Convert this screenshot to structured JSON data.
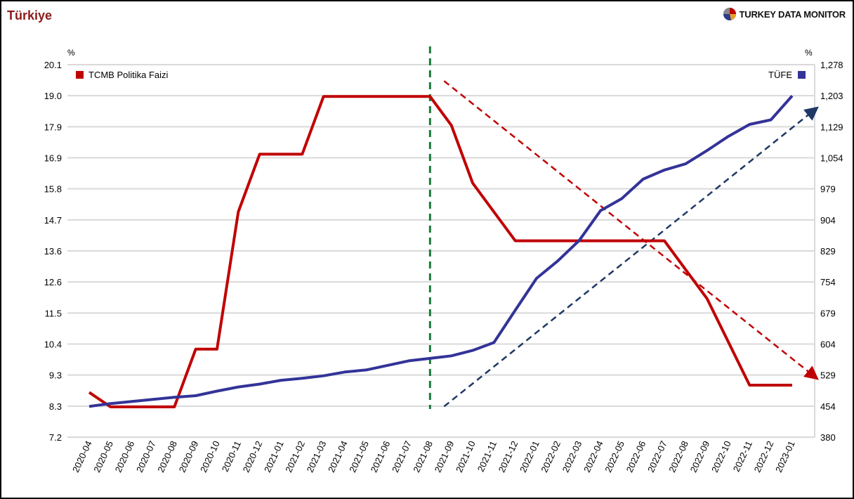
{
  "header": {
    "country": "Türkiye",
    "brand": "TURKEY DATA MONITOR",
    "brand_icon": "pie-logo-icon"
  },
  "chart_data": {
    "type": "line",
    "title": "",
    "categories": [
      "2020-04",
      "2020-05",
      "2020-06",
      "2020-07",
      "2020-08",
      "2020-09",
      "2020-10",
      "2020-11",
      "2020-12",
      "2021-01",
      "2021-02",
      "2021-03",
      "2021-04",
      "2021-05",
      "2021-06",
      "2021-07",
      "2021-08",
      "2021-09",
      "2021-10",
      "2021-11",
      "2021-12",
      "2022-01",
      "2022-02",
      "2022-03",
      "2022-04",
      "2022-05",
      "2022-06",
      "2022-07",
      "2022-08",
      "2022-09",
      "2022-10",
      "2022-11",
      "2022-12",
      "2023-01"
    ],
    "left_axis": {
      "unit": "%",
      "ticks": [
        "20.1",
        "19.0",
        "17.9",
        "16.9",
        "15.8",
        "14.7",
        "13.6",
        "12.6",
        "11.5",
        "10.4",
        "9.3",
        "8.3",
        "7.2"
      ],
      "range": [
        7.2,
        20.1
      ]
    },
    "right_axis": {
      "unit": "%",
      "ticks": [
        "1,278",
        "1,203",
        "1,129",
        "1,054",
        "979",
        "904",
        "829",
        "754",
        "679",
        "604",
        "529",
        "454",
        "380"
      ],
      "range": [
        380,
        1278
      ]
    },
    "grid": true,
    "series": [
      {
        "name": "TCMB Politika Faizi",
        "axis": "left",
        "color": "#c00000",
        "legend_position": "top-left",
        "values": [
          8.75,
          8.25,
          8.25,
          8.25,
          8.25,
          10.25,
          10.25,
          15.0,
          17.0,
          17.0,
          17.0,
          19.0,
          19.0,
          19.0,
          19.0,
          19.0,
          19.0,
          18.0,
          16.0,
          15.0,
          14.0,
          14.0,
          14.0,
          14.0,
          14.0,
          14.0,
          14.0,
          14.0,
          13.0,
          12.0,
          10.5,
          9.0,
          9.0,
          9.0
        ]
      },
      {
        "name": "TÜFE",
        "axis": "right",
        "color": "#333399",
        "legend_position": "top-right",
        "values": [
          454,
          461,
          466,
          471,
          476,
          480,
          491,
          501,
          508,
          517,
          522,
          528,
          537,
          542,
          553,
          564,
          570,
          576,
          589,
          608,
          686,
          763,
          805,
          854,
          926,
          955,
          1002,
          1024,
          1039,
          1071,
          1105,
          1134,
          1145,
          1203
        ]
      }
    ],
    "annotations": [
      {
        "type": "vertical-dashed-line",
        "color": "#1a7a3a",
        "at_category": "2021-08"
      },
      {
        "type": "dashed-arrow",
        "color": "#c00000",
        "direction": "down-right",
        "axis": "left",
        "from": {
          "x": "2021-08",
          "y": 19.0
        },
        "to": {
          "x": "2023-01",
          "y": 9.5
        }
      },
      {
        "type": "dashed-arrow",
        "color": "#1f3864",
        "direction": "up-right",
        "axis": "right",
        "from": {
          "x": "2021-08",
          "y": 454
        },
        "to": {
          "x": "2023-01",
          "y": 1172
        }
      }
    ]
  }
}
